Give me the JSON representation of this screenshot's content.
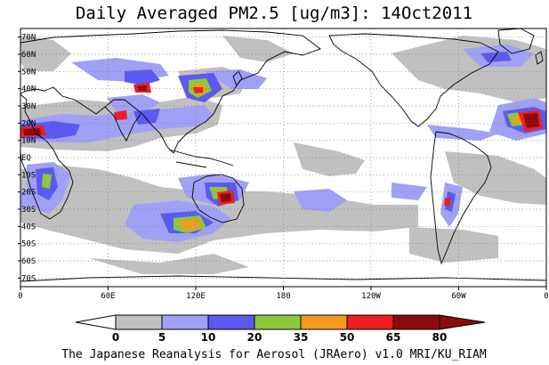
{
  "title": "Daily Averaged PM2.5 [ug/m3]: 14Oct2011",
  "credit": "The Japanese Reanalysis for Aerosol (JRAero) v1.0 MRI/KU_RIAM",
  "map": {
    "projection": "equirectangular",
    "lon_range": [
      0,
      360
    ],
    "lat_range": [
      -75,
      75
    ],
    "grid": "dotted",
    "ocean_color": "#ffffff",
    "coast_color": "#000000"
  },
  "axes": {
    "lon_ticks": [
      {
        "lon": 0,
        "label": "0"
      },
      {
        "lon": 60,
        "label": "60E"
      },
      {
        "lon": 120,
        "label": "120E"
      },
      {
        "lon": 180,
        "label": "180"
      },
      {
        "lon": 240,
        "label": "120W"
      },
      {
        "lon": 300,
        "label": "60W"
      },
      {
        "lon": 360,
        "label": "0"
      }
    ],
    "lat_ticks": [
      {
        "lat": 70,
        "label": "70N"
      },
      {
        "lat": 60,
        "label": "60N"
      },
      {
        "lat": 50,
        "label": "50N"
      },
      {
        "lat": 40,
        "label": "40N"
      },
      {
        "lat": 30,
        "label": "30N"
      },
      {
        "lat": 20,
        "label": "20N"
      },
      {
        "lat": 10,
        "label": "10N"
      },
      {
        "lat": 0,
        "label": "EQ"
      },
      {
        "lat": -10,
        "label": "10S"
      },
      {
        "lat": -20,
        "label": "20S"
      },
      {
        "lat": -30,
        "label": "30S"
      },
      {
        "lat": -40,
        "label": "40S"
      },
      {
        "lat": -50,
        "label": "50S"
      },
      {
        "lat": -60,
        "label": "60S"
      },
      {
        "lat": -70,
        "label": "70S"
      }
    ]
  },
  "colorbar": {
    "levels": [
      0,
      5,
      10,
      20,
      35,
      50,
      65,
      80
    ],
    "labels": [
      "0",
      "5",
      "10",
      "20",
      "35",
      "50",
      "65",
      "80"
    ],
    "colors": [
      "#ffffff",
      "#c0c0c0",
      "#a0a0f5",
      "#5a5af0",
      "#8cc83c",
      "#f59a1e",
      "#ee1e1e",
      "#8c0a0a"
    ]
  }
}
